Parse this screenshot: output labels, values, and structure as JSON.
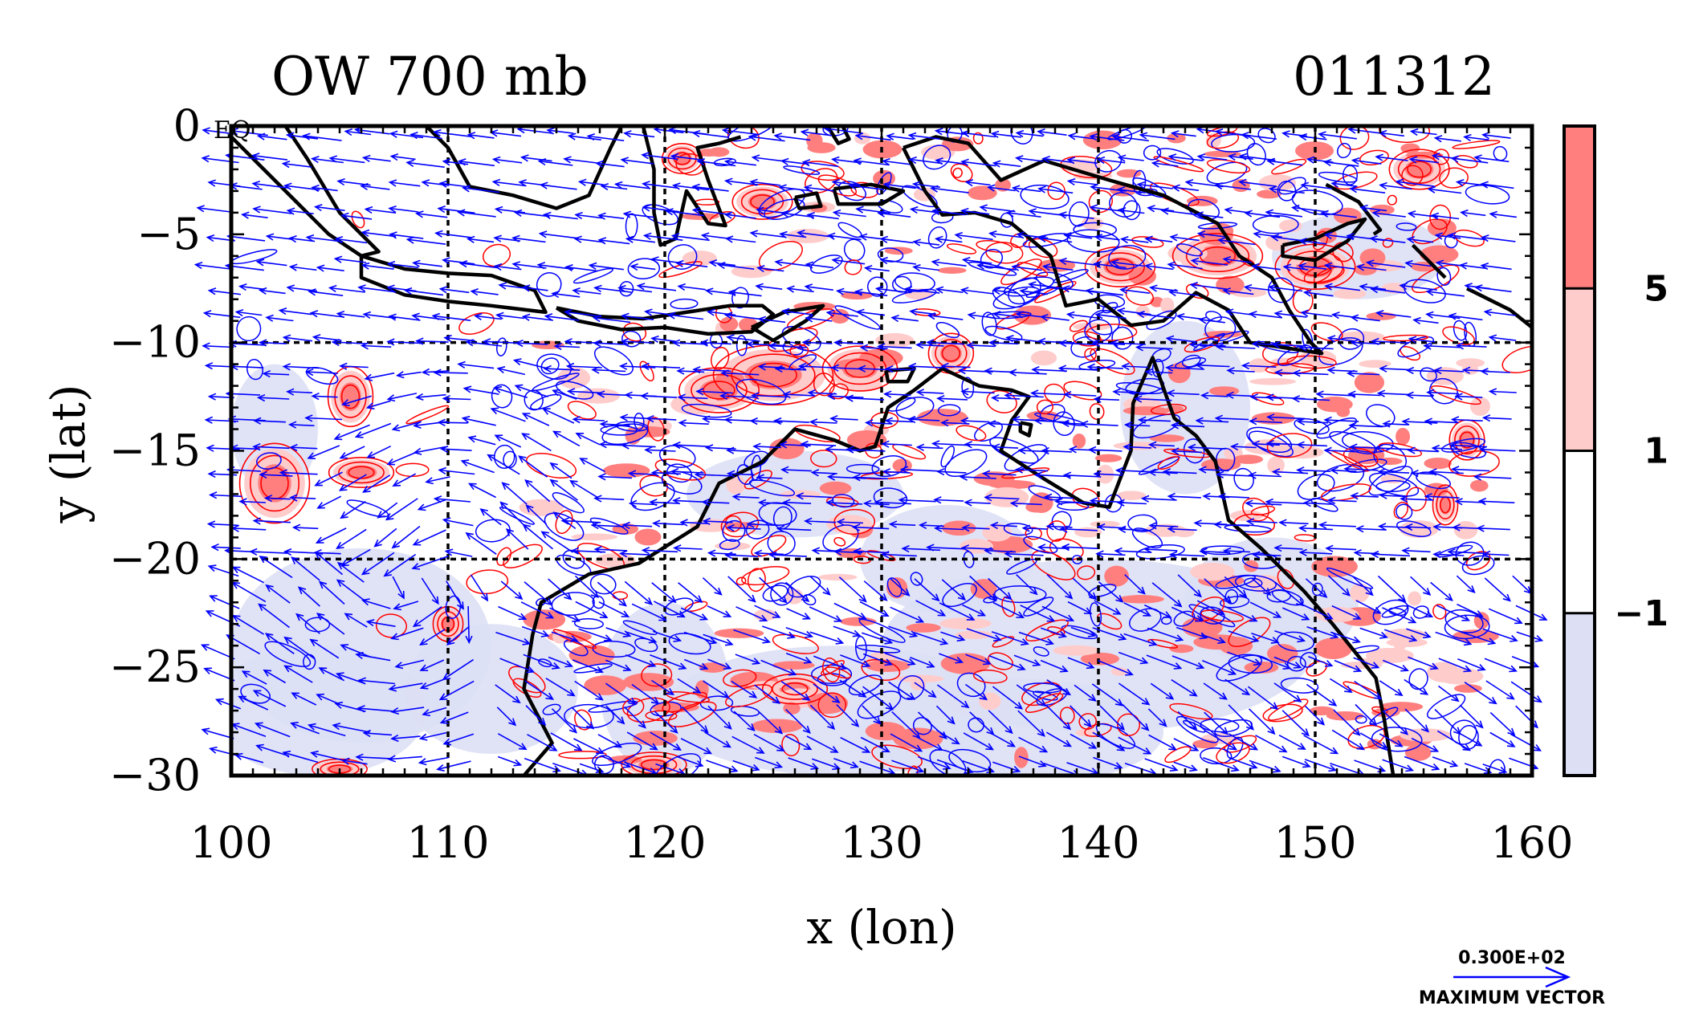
{
  "chart_data": {
    "type": "heatmap",
    "title": "OW 700 mb",
    "date_label": "011312",
    "xlabel": "x (lon)",
    "ylabel": "y (lat)",
    "xlim": [
      100,
      160
    ],
    "ylim": [
      -30,
      0
    ],
    "x_ticks": [
      100,
      110,
      120,
      130,
      140,
      150,
      160
    ],
    "y_ticks": [
      0,
      -5,
      -10,
      -15,
      -20,
      -25,
      -30
    ],
    "x_tick_labels": [
      "100",
      "110",
      "120",
      "130",
      "140",
      "150",
      "160"
    ],
    "y_tick_labels": [
      "0",
      "−5",
      "−10",
      "−15",
      "−20",
      "−25",
      "−30"
    ],
    "equator_label": "EQ",
    "grid": true,
    "grid_style": "dashed",
    "gridlines_x": [
      110,
      120,
      130,
      140,
      150
    ],
    "gridlines_y": [
      -10,
      -20
    ],
    "colorbar": {
      "levels": [
        -1,
        1,
        5
      ],
      "level_labels": [
        "−1",
        "1",
        "5"
      ],
      "colors": [
        "#dde0f5",
        "#ffffff",
        "#ffcccc",
        "#ff7f7f"
      ]
    },
    "contour_colors": {
      "positive": "#ff0000",
      "negative": "#0000ff"
    },
    "vector_color": "#0000ff",
    "coastline_color": "#000000",
    "vector_key": {
      "value_label": "0.300E+02",
      "caption": "MAXIMUM VECTOR"
    },
    "coastlines": [
      {
        "name": "sumatra",
        "lonlat": [
          [
            100,
            -0.5
          ],
          [
            101.5,
            -2
          ],
          [
            103,
            -3.5
          ],
          [
            104.5,
            -5
          ],
          [
            106,
            -6
          ],
          [
            106.8,
            -5.8
          ],
          [
            105,
            -4
          ],
          [
            103.5,
            -1.5
          ],
          [
            102.5,
            0
          ]
        ]
      },
      {
        "name": "borneo",
        "lonlat": [
          [
            109,
            0
          ],
          [
            110,
            -1
          ],
          [
            111,
            -2.8
          ],
          [
            113,
            -3.2
          ],
          [
            115,
            -3.8
          ],
          [
            116.5,
            -3.2
          ],
          [
            117.5,
            -1
          ],
          [
            118,
            0
          ]
        ]
      },
      {
        "name": "java",
        "lonlat": [
          [
            106,
            -6
          ],
          [
            108,
            -6.6
          ],
          [
            110,
            -6.8
          ],
          [
            112,
            -6.9
          ],
          [
            114,
            -7.6
          ],
          [
            114.5,
            -8.6
          ],
          [
            112,
            -8.3
          ],
          [
            110,
            -8.1
          ],
          [
            108,
            -7.8
          ],
          [
            106,
            -7
          ],
          [
            106,
            -6
          ]
        ]
      },
      {
        "name": "lesser-sunda",
        "lonlat": [
          [
            115,
            -8.4
          ],
          [
            117,
            -8.8
          ],
          [
            119,
            -8.9
          ],
          [
            121,
            -8.6
          ],
          [
            123,
            -8.3
          ],
          [
            124.5,
            -8.3
          ],
          [
            125,
            -8.7
          ],
          [
            124,
            -9.5
          ],
          [
            122,
            -9.6
          ],
          [
            120,
            -9.3
          ],
          [
            118,
            -9.4
          ],
          [
            116,
            -9.0
          ],
          [
            115,
            -8.4
          ]
        ]
      },
      {
        "name": "timor",
        "lonlat": [
          [
            124,
            -9.3
          ],
          [
            125.5,
            -8.6
          ],
          [
            127.3,
            -8.3
          ],
          [
            126.5,
            -9
          ],
          [
            125,
            -9.9
          ],
          [
            124,
            -9.3
          ]
        ]
      },
      {
        "name": "sulawesi",
        "lonlat": [
          [
            119,
            0
          ],
          [
            119.5,
            -2
          ],
          [
            119.5,
            -4
          ],
          [
            119.8,
            -5.5
          ],
          [
            120.5,
            -5.2
          ],
          [
            121,
            -3
          ],
          [
            122,
            -4.5
          ],
          [
            122.8,
            -4.6
          ],
          [
            122,
            -2.5
          ],
          [
            121.5,
            -1
          ],
          [
            122.5,
            -0.8
          ],
          [
            123.5,
            -0.5
          ]
        ]
      },
      {
        "name": "seram",
        "lonlat": [
          [
            127.8,
            -2.9
          ],
          [
            129.5,
            -2.7
          ],
          [
            131,
            -3
          ],
          [
            130,
            -3.6
          ],
          [
            128,
            -3.6
          ],
          [
            127.8,
            -2.9
          ]
        ]
      },
      {
        "name": "buru",
        "lonlat": [
          [
            126,
            -3.3
          ],
          [
            127,
            -3.1
          ],
          [
            127.2,
            -3.7
          ],
          [
            126.2,
            -3.8
          ],
          [
            126,
            -3.3
          ]
        ]
      },
      {
        "name": "halmahera",
        "lonlat": [
          [
            127.5,
            0
          ],
          [
            128,
            -0.8
          ],
          [
            128.5,
            -0.6
          ],
          [
            128.2,
            0
          ]
        ]
      },
      {
        "name": "new-guinea",
        "lonlat": [
          [
            131,
            -1
          ],
          [
            132.5,
            -0.5
          ],
          [
            134,
            -0.8
          ],
          [
            135.5,
            -2.5
          ],
          [
            137.5,
            -1.6
          ],
          [
            140.5,
            -2.5
          ],
          [
            143,
            -3.2
          ],
          [
            145.5,
            -4.5
          ],
          [
            146.5,
            -6
          ],
          [
            148,
            -7
          ],
          [
            148.8,
            -8.5
          ],
          [
            149.8,
            -10
          ],
          [
            150.3,
            -10.5
          ],
          [
            149,
            -10.3
          ],
          [
            147,
            -10
          ],
          [
            146,
            -8.5
          ],
          [
            144.5,
            -7.7
          ],
          [
            143,
            -9
          ],
          [
            141.5,
            -9.2
          ],
          [
            140,
            -8
          ],
          [
            138.5,
            -8.3
          ],
          [
            137.8,
            -6
          ],
          [
            136,
            -4.5
          ],
          [
            134.3,
            -4
          ],
          [
            132.8,
            -4.1
          ],
          [
            132,
            -3
          ],
          [
            131,
            -1
          ]
        ]
      },
      {
        "name": "new-britain",
        "lonlat": [
          [
            148.5,
            -5.5
          ],
          [
            150,
            -5.2
          ],
          [
            151.5,
            -4.5
          ],
          [
            152.3,
            -4.3
          ],
          [
            151.5,
            -5.3
          ],
          [
            150,
            -6.2
          ],
          [
            148.5,
            -6
          ],
          [
            148.5,
            -5.5
          ]
        ]
      },
      {
        "name": "new-ireland",
        "lonlat": [
          [
            150.5,
            -2.7
          ],
          [
            152,
            -3.5
          ],
          [
            153,
            -4.8
          ],
          [
            152.7,
            -5
          ]
        ]
      },
      {
        "name": "bougainville",
        "lonlat": [
          [
            154.5,
            -5.5
          ],
          [
            155.5,
            -6.5
          ],
          [
            156,
            -7
          ]
        ]
      },
      {
        "name": "solomons",
        "lonlat": [
          [
            157,
            -7.5
          ],
          [
            159,
            -8.5
          ],
          [
            160,
            -9.3
          ]
        ]
      },
      {
        "name": "australia",
        "lonlat": [
          [
            113.5,
            -30
          ],
          [
            114.8,
            -28.5
          ],
          [
            113.5,
            -26
          ],
          [
            113.9,
            -23.5
          ],
          [
            114.3,
            -22
          ],
          [
            116.5,
            -20.7
          ],
          [
            118.8,
            -20.2
          ],
          [
            121.5,
            -18.5
          ],
          [
            122.5,
            -16.5
          ],
          [
            124.5,
            -15.5
          ],
          [
            126,
            -14
          ],
          [
            127.8,
            -14.5
          ],
          [
            129,
            -15
          ],
          [
            129.7,
            -14.8
          ],
          [
            130.3,
            -13
          ],
          [
            131.5,
            -12.2
          ],
          [
            132.8,
            -11.2
          ],
          [
            134.5,
            -12
          ],
          [
            136,
            -12.2
          ],
          [
            136.8,
            -12.5
          ],
          [
            136,
            -13.6
          ],
          [
            135.5,
            -15
          ],
          [
            137.5,
            -16.3
          ],
          [
            139.3,
            -17.4
          ],
          [
            140.5,
            -17.6
          ],
          [
            141.5,
            -15
          ],
          [
            141.6,
            -12.8
          ],
          [
            142.5,
            -10.7
          ],
          [
            143.5,
            -13.5
          ],
          [
            144.5,
            -14.3
          ],
          [
            145.4,
            -15.5
          ],
          [
            146,
            -18.2
          ],
          [
            147.5,
            -19.5
          ],
          [
            149.5,
            -21.5
          ],
          [
            150.8,
            -23
          ],
          [
            152.8,
            -25.5
          ],
          [
            153.2,
            -27.5
          ],
          [
            153.6,
            -30
          ]
        ]
      },
      {
        "name": "melville",
        "lonlat": [
          [
            130.2,
            -11.3
          ],
          [
            131.5,
            -11.2
          ],
          [
            131.2,
            -11.8
          ],
          [
            130.3,
            -11.8
          ],
          [
            130.2,
            -11.3
          ]
        ]
      },
      {
        "name": "groote",
        "lonlat": [
          [
            136.4,
            -13.7
          ],
          [
            136.9,
            -13.8
          ],
          [
            136.8,
            -14.3
          ],
          [
            136.4,
            -14.1
          ],
          [
            136.4,
            -13.7
          ]
        ]
      }
    ]
  }
}
